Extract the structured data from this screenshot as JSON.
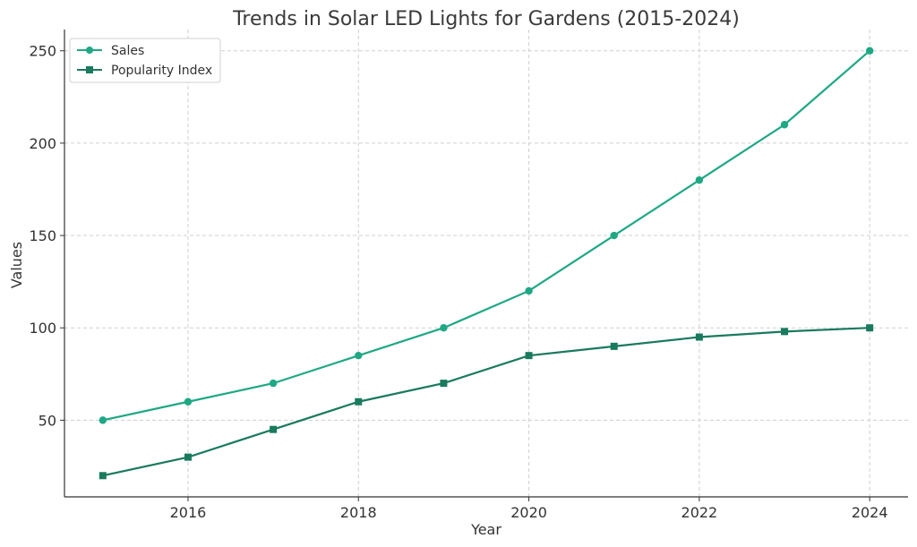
{
  "chart_data": {
    "type": "line",
    "title": "Trends in Solar LED Lights for Gardens (2015-2024)",
    "xlabel": "Year",
    "ylabel": "Values",
    "x": [
      2015,
      2016,
      2017,
      2018,
      2019,
      2020,
      2021,
      2022,
      2023,
      2024
    ],
    "xlim": [
      2014.55,
      2024.45
    ],
    "ylim": [
      8.5,
      261.5
    ],
    "x_ticks": [
      2016,
      2018,
      2020,
      2022,
      2024
    ],
    "y_ticks": [
      50,
      100,
      150,
      200,
      250
    ],
    "grid": true,
    "legend_position": "top-left",
    "series": [
      {
        "name": "Sales",
        "color": "#1ea884",
        "marker": "circle",
        "values": [
          50,
          60,
          70,
          85,
          100,
          120,
          150,
          180,
          210,
          250
        ]
      },
      {
        "name": "Popularity Index",
        "color": "#1a7a5e",
        "marker": "square",
        "values": [
          20,
          30,
          45,
          60,
          70,
          85,
          90,
          95,
          98,
          100
        ]
      }
    ]
  }
}
